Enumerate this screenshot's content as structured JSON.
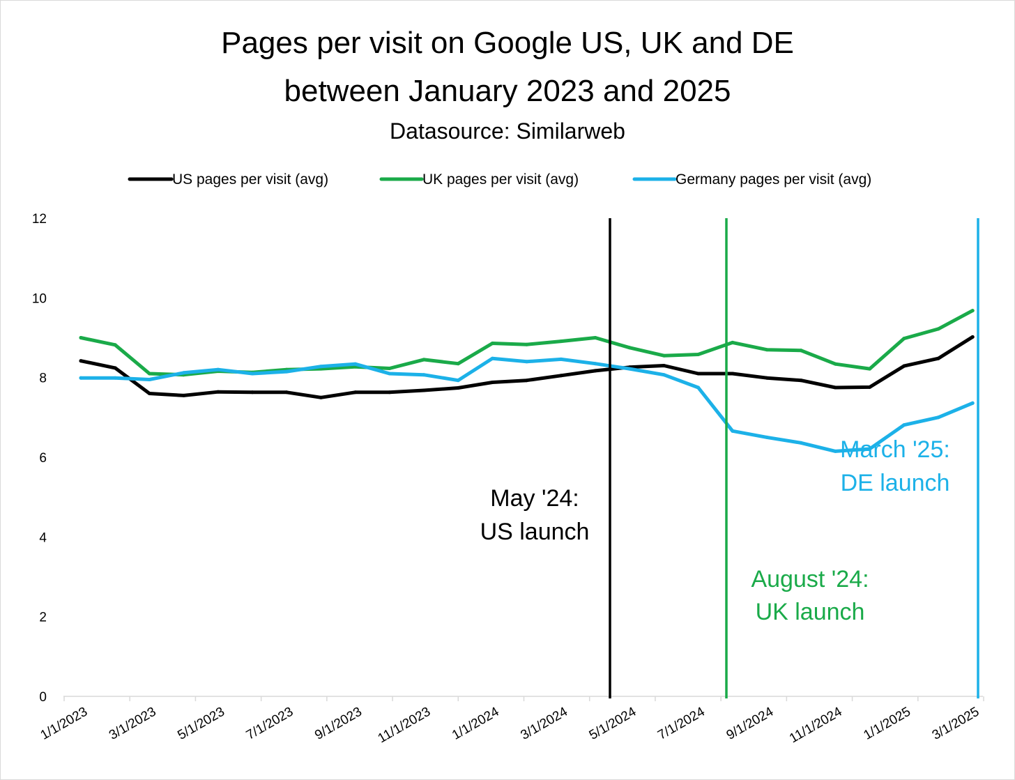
{
  "title_line1": "Pages per visit on Google US, UK and DE",
  "title_line2": "between January 2023 and 2025",
  "subtitle": "Datasource: Similarweb",
  "colors": {
    "us": "#000000",
    "uk": "#1aaa49",
    "de": "#1cb1e8",
    "axis": "#d9d9d9"
  },
  "chart_data": {
    "type": "line",
    "title": "Pages per visit on Google US, UK and DE between January 2023 and 2025",
    "subtitle": "Datasource: Similarweb",
    "xlabel": "",
    "ylabel": "",
    "ylim": [
      0,
      12
    ],
    "yticks": [
      0,
      2,
      4,
      6,
      8,
      10,
      12
    ],
    "grid": false,
    "legend_position": "top",
    "x": [
      "1/1/2023",
      "2/1/2023",
      "3/1/2023",
      "4/1/2023",
      "5/1/2023",
      "6/1/2023",
      "7/1/2023",
      "8/1/2023",
      "9/1/2023",
      "10/1/2023",
      "11/1/2023",
      "12/1/2023",
      "1/1/2024",
      "2/1/2024",
      "3/1/2024",
      "4/1/2024",
      "5/1/2024",
      "6/1/2024",
      "7/1/2024",
      "8/1/2024",
      "9/1/2024",
      "10/1/2024",
      "11/1/2024",
      "12/1/2024",
      "1/1/2025",
      "2/1/2025",
      "3/1/2025"
    ],
    "x_tick_labels": [
      "1/1/2023",
      "3/1/2023",
      "5/1/2023",
      "7/1/2023",
      "9/1/2023",
      "11/1/2023",
      "1/1/2024",
      "3/1/2024",
      "5/1/2024",
      "7/1/2024",
      "9/1/2024",
      "11/1/2024",
      "1/1/2025",
      "3/1/2025"
    ],
    "series": [
      {
        "name": "US pages per visit (avg)",
        "color": "#000000",
        "values": [
          8.42,
          8.24,
          7.6,
          7.55,
          7.64,
          7.63,
          7.63,
          7.5,
          7.63,
          7.63,
          7.68,
          7.74,
          7.88,
          7.93,
          8.05,
          8.17,
          8.26,
          8.3,
          8.1,
          8.1,
          7.99,
          7.93,
          7.75,
          7.76,
          8.29,
          8.48,
          9.02
        ]
      },
      {
        "name": "UK pages per visit (avg)",
        "color": "#1aaa49",
        "values": [
          9.0,
          8.82,
          8.1,
          8.07,
          8.16,
          8.13,
          8.2,
          8.22,
          8.27,
          8.23,
          8.45,
          8.35,
          8.86,
          8.83,
          8.91,
          9.0,
          8.75,
          8.55,
          8.58,
          8.88,
          8.7,
          8.68,
          8.34,
          8.22,
          8.98,
          9.22,
          9.68
        ]
      },
      {
        "name": "Germany pages per visit (avg)",
        "color": "#1cb1e8",
        "values": [
          7.99,
          7.99,
          7.95,
          8.12,
          8.2,
          8.1,
          8.15,
          8.28,
          8.34,
          8.1,
          8.07,
          7.93,
          8.48,
          8.4,
          8.46,
          8.35,
          8.22,
          8.07,
          7.75,
          6.66,
          6.5,
          6.36,
          6.15,
          6.21,
          6.81,
          7.0,
          7.36
        ]
      }
    ],
    "launch_lines": [
      {
        "x": "5/1/2024",
        "color": "#000000",
        "label_line1": "May '24:",
        "label_line2": "US launch"
      },
      {
        "x": "8/1/2024",
        "color": "#1aaa49",
        "label_line1": "August '24:",
        "label_line2": "UK launch"
      },
      {
        "x": "3/1/2025",
        "color": "#1cb1e8",
        "label_line1": "March '25:",
        "label_line2": "DE launch"
      }
    ]
  }
}
